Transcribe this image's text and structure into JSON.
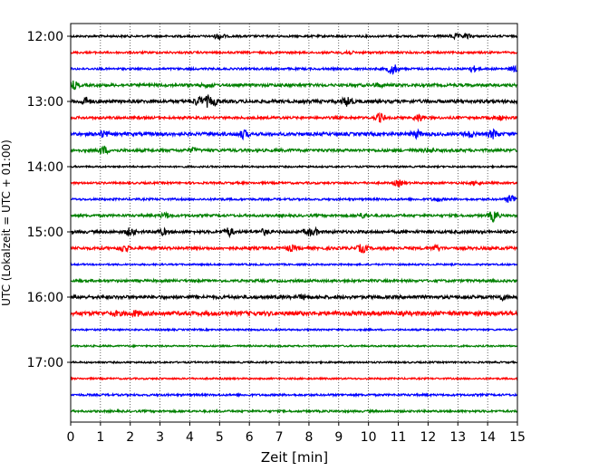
{
  "chart_data": {
    "type": "line",
    "title": "",
    "xlabel": "Zeit  [min]",
    "ylabel": "UTC (Lokalzeit = UTC + 01:00)",
    "xlim": [
      0,
      15
    ],
    "x_ticks": [
      "0",
      "1",
      "2",
      "3",
      "4",
      "5",
      "6",
      "7",
      "8",
      "9",
      "10",
      "11",
      "12",
      "13",
      "14",
      "15"
    ],
    "y_ticks": [
      "12:00",
      "13:00",
      "14:00",
      "15:00",
      "16:00",
      "17:00"
    ],
    "grid": "vertical dotted",
    "line_colors": [
      "#000000",
      "#ff0000",
      "#0000ff",
      "#008000"
    ],
    "traces": [
      {
        "start": "12:00",
        "color": "#000000",
        "amplitude": 0.25,
        "events": [
          {
            "t": 5.0,
            "a": 0.7
          },
          {
            "t": 12.9,
            "a": 0.6
          },
          {
            "t": 13.3,
            "a": 0.5
          }
        ]
      },
      {
        "start": "12:15",
        "color": "#ff0000",
        "amplitude": 0.25,
        "events": [
          {
            "t": 9.3,
            "a": 0.5
          }
        ]
      },
      {
        "start": "12:30",
        "color": "#0000ff",
        "amplitude": 0.25,
        "events": [
          {
            "t": 10.8,
            "a": 1.4
          },
          {
            "t": 13.5,
            "a": 0.7
          },
          {
            "t": 14.9,
            "a": 0.6
          }
        ]
      },
      {
        "start": "12:45",
        "color": "#008000",
        "amplitude": 0.35,
        "events": [
          {
            "t": 0.1,
            "a": 0.9
          },
          {
            "t": 4.6,
            "a": 0.4
          },
          {
            "t": 10.3,
            "a": 0.4
          }
        ]
      },
      {
        "start": "13:00",
        "color": "#000000",
        "amplitude": 0.4,
        "events": [
          {
            "t": 0.5,
            "a": 0.9
          },
          {
            "t": 4.3,
            "a": 1.0
          },
          {
            "t": 4.6,
            "a": 1.2
          },
          {
            "t": 4.8,
            "a": 0.8
          },
          {
            "t": 9.3,
            "a": 1.2
          }
        ]
      },
      {
        "start": "13:15",
        "color": "#ff0000",
        "amplitude": 0.3,
        "events": [
          {
            "t": 10.4,
            "a": 1.0
          },
          {
            "t": 11.7,
            "a": 0.8
          },
          {
            "t": 14.4,
            "a": 0.5
          }
        ]
      },
      {
        "start": "13:30",
        "color": "#0000ff",
        "amplitude": 0.4,
        "events": [
          {
            "t": 1.1,
            "a": 0.7
          },
          {
            "t": 5.8,
            "a": 0.9
          },
          {
            "t": 11.6,
            "a": 0.8
          },
          {
            "t": 13.4,
            "a": 0.7
          },
          {
            "t": 14.2,
            "a": 1.0
          }
        ]
      },
      {
        "start": "13:45",
        "color": "#008000",
        "amplitude": 0.35,
        "events": [
          {
            "t": 1.1,
            "a": 0.9
          },
          {
            "t": 4.1,
            "a": 0.4
          },
          {
            "t": 12.0,
            "a": 0.4
          }
        ]
      },
      {
        "start": "14:00",
        "color": "#000000",
        "amplitude": 0.2,
        "events": []
      },
      {
        "start": "14:15",
        "color": "#ff0000",
        "amplitude": 0.25,
        "events": [
          {
            "t": 11.0,
            "a": 0.7
          },
          {
            "t": 13.6,
            "a": 0.4
          }
        ]
      },
      {
        "start": "14:30",
        "color": "#0000ff",
        "amplitude": 0.25,
        "events": [
          {
            "t": 12.3,
            "a": 0.4
          },
          {
            "t": 14.8,
            "a": 1.2
          }
        ]
      },
      {
        "start": "14:45",
        "color": "#008000",
        "amplitude": 0.3,
        "events": [
          {
            "t": 3.2,
            "a": 0.6
          },
          {
            "t": 9.8,
            "a": 0.5
          },
          {
            "t": 14.2,
            "a": 1.3
          }
        ]
      },
      {
        "start": "15:00",
        "color": "#000000",
        "amplitude": 0.35,
        "events": [
          {
            "t": 2.0,
            "a": 0.9
          },
          {
            "t": 3.1,
            "a": 0.6
          },
          {
            "t": 5.3,
            "a": 1.0
          },
          {
            "t": 6.5,
            "a": 0.6
          },
          {
            "t": 8.0,
            "a": 0.8
          },
          {
            "t": 8.2,
            "a": 0.7
          }
        ]
      },
      {
        "start": "15:15",
        "color": "#ff0000",
        "amplitude": 0.35,
        "events": [
          {
            "t": 1.8,
            "a": 0.8
          },
          {
            "t": 7.4,
            "a": 0.6
          },
          {
            "t": 9.8,
            "a": 1.0
          },
          {
            "t": 12.3,
            "a": 0.6
          }
        ]
      },
      {
        "start": "15:30",
        "color": "#0000ff",
        "amplitude": 0.2,
        "events": []
      },
      {
        "start": "15:45",
        "color": "#008000",
        "amplitude": 0.3,
        "events": []
      },
      {
        "start": "16:00",
        "color": "#000000",
        "amplitude": 0.4,
        "events": [
          {
            "t": 7.8,
            "a": 0.4
          },
          {
            "t": 14.5,
            "a": 0.5
          }
        ]
      },
      {
        "start": "16:15",
        "color": "#ff0000",
        "amplitude": 0.5,
        "events": [
          {
            "t": 1.5,
            "a": 0.4
          },
          {
            "t": 2.2,
            "a": 0.5
          }
        ]
      },
      {
        "start": "16:30",
        "color": "#0000ff",
        "amplitude": 0.2,
        "events": []
      },
      {
        "start": "16:45",
        "color": "#008000",
        "amplitude": 0.2,
        "events": []
      },
      {
        "start": "17:00",
        "color": "#000000",
        "amplitude": 0.2,
        "events": []
      },
      {
        "start": "17:15",
        "color": "#ff0000",
        "amplitude": 0.2,
        "events": []
      },
      {
        "start": "17:30",
        "color": "#0000ff",
        "amplitude": 0.25,
        "events": []
      },
      {
        "start": "17:45",
        "color": "#008000",
        "amplitude": 0.25,
        "events": []
      }
    ]
  }
}
